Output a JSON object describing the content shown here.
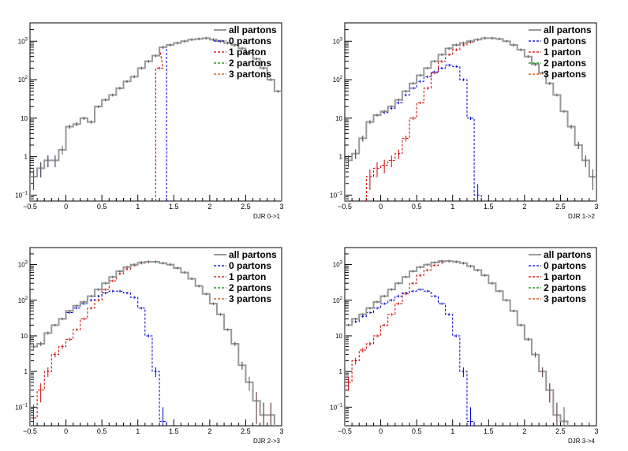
{
  "chart_data": [
    {
      "type": "line",
      "title": "",
      "xlabel": "DJR 0->1",
      "ylabel": "",
      "xlim": [
        -0.5,
        3
      ],
      "ylim": [
        0.07,
        3000
      ],
      "y_scale": "log",
      "x_ticks": [
        "−0.5",
        "0",
        "0.5",
        "1",
        "1.5",
        "2",
        "2.5",
        "3"
      ],
      "y_ticks": [
        {
          "v": 0.1,
          "base": "10",
          "exp": "−1"
        },
        {
          "v": 1,
          "label": "1"
        },
        {
          "v": 10,
          "label": "10"
        },
        {
          "v": 100,
          "base": "10",
          "exp": "2"
        },
        {
          "v": 1000,
          "base": "10",
          "exp": "3"
        }
      ],
      "legend_position": "top-right",
      "legend": [
        "all partons",
        "0 partons",
        "1 parton",
        "2 partons",
        "3 partons"
      ],
      "series": [
        {
          "name": "all partons",
          "color": "#999999",
          "style": "solid",
          "x": [
            -0.5,
            -0.4,
            -0.3,
            -0.2,
            -0.1,
            0.0,
            0.1,
            0.2,
            0.3,
            0.4,
            0.5,
            0.6,
            0.7,
            0.8,
            0.9,
            1.0,
            1.1,
            1.2,
            1.3,
            1.4,
            1.5,
            1.6,
            1.7,
            1.8,
            1.9,
            2.0,
            2.1,
            2.2,
            2.3,
            2.4,
            2.5,
            2.6,
            2.7,
            2.8,
            2.9
          ],
          "y": [
            0.3,
            0.5,
            0.8,
            0.8,
            1.5,
            6,
            7,
            10,
            8,
            20,
            30,
            40,
            60,
            90,
            120,
            200,
            300,
            420,
            700,
            800,
            900,
            1000,
            1100,
            1150,
            1200,
            1100,
            1000,
            900,
            800,
            650,
            500,
            350,
            200,
            100,
            50
          ]
        },
        {
          "name": "0 partons",
          "color": "#0000cc",
          "style": "dashed",
          "x": [
            -0.5,
            -0.4,
            -0.3,
            -0.2,
            -0.1,
            0.0,
            0.1,
            0.2,
            0.3,
            0.4,
            0.5,
            0.6,
            0.7,
            0.8,
            0.9,
            1.0,
            1.1,
            1.2,
            1.3
          ],
          "y": [
            0.3,
            0.5,
            0.8,
            0.8,
            1.5,
            6,
            7,
            10,
            8,
            20,
            30,
            40,
            60,
            90,
            120,
            200,
            300,
            420,
            700
          ]
        },
        {
          "name": "1 parton",
          "color": "#cc0000",
          "style": "dashed",
          "x": [
            1.25,
            1.3,
            1.4,
            1.5,
            1.6,
            1.7,
            1.8,
            1.9,
            2.0,
            2.1,
            2.2,
            2.3,
            2.4,
            2.5,
            2.6,
            2.7,
            2.8,
            2.9
          ],
          "y": [
            200,
            700,
            800,
            900,
            1000,
            1100,
            1150,
            1200,
            1100,
            1000,
            900,
            800,
            650,
            500,
            350,
            200,
            100,
            50
          ]
        },
        {
          "name": "2 partons",
          "color": "#008800",
          "style": "dashed",
          "x": [],
          "y": []
        },
        {
          "name": "3 partons",
          "color": "#cc4400",
          "style": "dashed",
          "x": [],
          "y": []
        }
      ]
    },
    {
      "type": "line",
      "title": "",
      "xlabel": "DJR 1->2",
      "ylabel": "",
      "xlim": [
        -0.5,
        3
      ],
      "ylim": [
        0.07,
        3000
      ],
      "y_scale": "log",
      "x_ticks": [
        "−0.5",
        "0",
        "0.5",
        "1",
        "1.5",
        "2",
        "2.5",
        "3"
      ],
      "y_ticks": [
        {
          "v": 0.1,
          "base": "10",
          "exp": "−1"
        },
        {
          "v": 1,
          "label": "1"
        },
        {
          "v": 10,
          "label": "10"
        },
        {
          "v": 100,
          "base": "10",
          "exp": "2"
        },
        {
          "v": 1000,
          "base": "10",
          "exp": "3"
        }
      ],
      "legend_position": "top-right",
      "legend": [
        "all partons",
        "0 partons",
        "1 parton",
        "2 partons",
        "3 partons"
      ],
      "series": [
        {
          "name": "all partons",
          "color": "#999999",
          "style": "solid",
          "x": [
            -0.5,
            -0.4,
            -0.3,
            -0.2,
            -0.1,
            0.0,
            0.1,
            0.2,
            0.3,
            0.4,
            0.5,
            0.6,
            0.7,
            0.8,
            0.9,
            1.0,
            1.1,
            1.2,
            1.3,
            1.4,
            1.5,
            1.6,
            1.7,
            1.8,
            1.9,
            2.0,
            2.1,
            2.2,
            2.3,
            2.4,
            2.5,
            2.6,
            2.7,
            2.8,
            2.9
          ],
          "y": [
            0.8,
            1.2,
            3,
            8,
            12,
            15,
            20,
            30,
            50,
            80,
            130,
            200,
            300,
            450,
            650,
            800,
            900,
            1000,
            1100,
            1200,
            1200,
            1150,
            1000,
            800,
            600,
            400,
            250,
            150,
            80,
            40,
            15,
            6,
            2,
            0.8,
            0.3
          ]
        },
        {
          "name": "0 partons",
          "color": "#0000cc",
          "style": "dashed",
          "x": [
            -0.5,
            -0.4,
            -0.3,
            -0.2,
            -0.1,
            0.0,
            0.1,
            0.2,
            0.3,
            0.4,
            0.5,
            0.6,
            0.7,
            0.8,
            0.9,
            1.0,
            1.1,
            1.2,
            1.3
          ],
          "y": [
            0.8,
            1.2,
            3,
            8,
            12,
            14,
            18,
            25,
            40,
            60,
            90,
            120,
            160,
            200,
            240,
            220,
            100,
            10,
            0.1
          ]
        },
        {
          "name": "1 parton",
          "color": "#cc0000",
          "style": "dashed",
          "x": [
            -0.2,
            -0.1,
            0.0,
            0.1,
            0.2,
            0.3,
            0.4,
            0.5,
            0.6,
            0.7,
            0.8,
            0.9,
            1.0,
            1.1,
            1.2,
            1.3,
            1.4,
            1.5,
            1.6,
            1.7,
            1.8,
            1.9,
            2.0,
            2.1,
            2.2,
            2.3,
            2.4,
            2.5,
            2.6,
            2.7,
            2.8,
            2.9
          ],
          "y": [
            0.3,
            0.5,
            0.6,
            0.8,
            1.2,
            3,
            10,
            25,
            60,
            150,
            300,
            450,
            600,
            800,
            950,
            1100,
            1200,
            1200,
            1150,
            1000,
            800,
            600,
            400,
            250,
            150,
            80,
            40,
            15,
            6,
            2,
            0.8,
            0.3
          ]
        },
        {
          "name": "2 partons",
          "color": "#008800",
          "style": "dashed",
          "x": [],
          "y": []
        },
        {
          "name": "3 partons",
          "color": "#cc4400",
          "style": "dashed",
          "x": [],
          "y": []
        }
      ]
    },
    {
      "type": "line",
      "title": "",
      "xlabel": "DJR 2->3",
      "ylabel": "",
      "xlim": [
        -0.5,
        3
      ],
      "ylim": [
        0.03,
        3000
      ],
      "y_scale": "log",
      "x_ticks": [
        "−0.5",
        "0",
        "0.5",
        "1",
        "1.5",
        "2",
        "2.5",
        "3"
      ],
      "y_ticks": [
        {
          "v": 0.1,
          "base": "10",
          "exp": "−1"
        },
        {
          "v": 1,
          "label": "1"
        },
        {
          "v": 10,
          "label": "10"
        },
        {
          "v": 100,
          "base": "10",
          "exp": "2"
        },
        {
          "v": 1000,
          "base": "10",
          "exp": "3"
        }
      ],
      "legend_position": "top-right",
      "legend": [
        "all partons",
        "0 partons",
        "1 parton",
        "2 partons",
        "3 partons"
      ],
      "series": [
        {
          "name": "all partons",
          "color": "#999999",
          "style": "solid",
          "x": [
            -0.5,
            -0.4,
            -0.3,
            -0.2,
            -0.1,
            0.0,
            0.1,
            0.2,
            0.3,
            0.4,
            0.5,
            0.6,
            0.7,
            0.8,
            0.9,
            1.0,
            1.1,
            1.2,
            1.3,
            1.4,
            1.5,
            1.6,
            1.7,
            1.8,
            1.9,
            2.0,
            2.1,
            2.2,
            2.3,
            2.4,
            2.5,
            2.6,
            2.7,
            2.8
          ],
          "y": [
            5,
            6,
            12,
            20,
            30,
            50,
            70,
            90,
            130,
            200,
            300,
            450,
            650,
            850,
            1000,
            1150,
            1200,
            1200,
            1100,
            1000,
            800,
            600,
            400,
            250,
            150,
            80,
            40,
            15,
            6,
            1.5,
            0.5,
            0.15,
            0.06,
            0.06
          ]
        },
        {
          "name": "0 partons",
          "color": "#0000cc",
          "style": "dashed",
          "x": [
            -0.5,
            -0.4,
            -0.3,
            -0.2,
            -0.1,
            0.0,
            0.1,
            0.2,
            0.3,
            0.4,
            0.5,
            0.6,
            0.7,
            0.8,
            0.9,
            1.0,
            1.1,
            1.2,
            1.3
          ],
          "y": [
            5,
            6,
            12,
            20,
            30,
            45,
            60,
            80,
            100,
            130,
            160,
            180,
            180,
            160,
            120,
            60,
            10,
            1,
            0.04
          ]
        },
        {
          "name": "1 parton",
          "color": "#cc0000",
          "style": "dashed",
          "x": [
            -0.5,
            -0.4,
            -0.3,
            -0.2,
            -0.1,
            0.0,
            0.1,
            0.2,
            0.3,
            0.4,
            0.5,
            0.6,
            0.7,
            0.8,
            0.9,
            1.0,
            1.1,
            1.2,
            1.3,
            1.4,
            1.5,
            1.6,
            1.7,
            1.8,
            1.9,
            2.0,
            2.1,
            2.2,
            2.3,
            2.4,
            2.5,
            2.6,
            2.7,
            2.8
          ],
          "y": [
            0.05,
            0.3,
            1,
            3,
            5,
            8,
            15,
            30,
            60,
            100,
            200,
            350,
            550,
            750,
            950,
            1100,
            1200,
            1200,
            1100,
            1000,
            800,
            600,
            400,
            250,
            150,
            80,
            40,
            15,
            6,
            1.5,
            0.5,
            0.15,
            0.06,
            0.06
          ]
        },
        {
          "name": "2 partons",
          "color": "#008800",
          "style": "dashed",
          "x": [],
          "y": []
        },
        {
          "name": "3 partons",
          "color": "#cc4400",
          "style": "dashed",
          "x": [],
          "y": []
        }
      ]
    },
    {
      "type": "line",
      "title": "",
      "xlabel": "DJR 3->4",
      "ylabel": "",
      "xlim": [
        -0.5,
        3
      ],
      "ylim": [
        0.03,
        3000
      ],
      "y_scale": "log",
      "x_ticks": [
        "−0.5",
        "0",
        "0.5",
        "1",
        "1.5",
        "2",
        "2.5",
        "3"
      ],
      "y_ticks": [
        {
          "v": 0.1,
          "base": "10",
          "exp": "−1"
        },
        {
          "v": 1,
          "label": "1"
        },
        {
          "v": 10,
          "label": "10"
        },
        {
          "v": 100,
          "base": "10",
          "exp": "2"
        },
        {
          "v": 1000,
          "base": "10",
          "exp": "3"
        }
      ],
      "legend_position": "top-right",
      "legend": [
        "all partons",
        "0 partons",
        "1 parton",
        "2 partons",
        "3 partons"
      ],
      "series": [
        {
          "name": "all partons",
          "color": "#999999",
          "style": "solid",
          "x": [
            -0.5,
            -0.4,
            -0.3,
            -0.2,
            -0.1,
            0.0,
            0.1,
            0.2,
            0.3,
            0.4,
            0.5,
            0.6,
            0.7,
            0.8,
            0.9,
            1.0,
            1.1,
            1.2,
            1.3,
            1.4,
            1.5,
            1.6,
            1.7,
            1.8,
            1.9,
            2.0,
            2.1,
            2.2,
            2.3,
            2.4,
            2.5
          ],
          "y": [
            20,
            30,
            40,
            60,
            90,
            130,
            200,
            300,
            450,
            650,
            850,
            1000,
            1150,
            1250,
            1250,
            1200,
            1100,
            900,
            700,
            500,
            300,
            180,
            100,
            50,
            20,
            8,
            3,
            1,
            0.3,
            0.06,
            0.04
          ]
        },
        {
          "name": "0 partons",
          "color": "#0000cc",
          "style": "dashed",
          "x": [
            -0.5,
            -0.4,
            -0.3,
            -0.2,
            -0.1,
            0.0,
            0.1,
            0.2,
            0.3,
            0.4,
            0.5,
            0.6,
            0.7,
            0.8,
            0.9,
            1.0,
            1.1,
            1.2
          ],
          "y": [
            20,
            25,
            35,
            45,
            60,
            80,
            100,
            130,
            160,
            180,
            200,
            180,
            130,
            80,
            40,
            10,
            1,
            0.04
          ]
        },
        {
          "name": "1 parton",
          "color": "#cc0000",
          "style": "dashed",
          "x": [
            -0.5,
            -0.4,
            -0.3,
            -0.2,
            -0.1,
            0.0,
            0.1,
            0.2,
            0.3,
            0.4,
            0.5,
            0.6,
            0.7,
            0.8,
            0.9,
            1.0,
            1.1,
            1.2,
            1.3,
            1.4,
            1.5,
            1.6,
            1.7,
            1.8,
            1.9,
            2.0,
            2.1,
            2.2,
            2.3,
            2.4,
            2.5
          ],
          "y": [
            0.5,
            2,
            4,
            6,
            10,
            20,
            40,
            80,
            150,
            300,
            500,
            700,
            950,
            1150,
            1250,
            1200,
            1100,
            900,
            700,
            500,
            300,
            180,
            100,
            50,
            20,
            8,
            3,
            1,
            0.3,
            0.06,
            0.04
          ]
        },
        {
          "name": "2 partons",
          "color": "#008800",
          "style": "dashed",
          "x": [],
          "y": []
        },
        {
          "name": "3 partons",
          "color": "#cc4400",
          "style": "dashed",
          "x": [],
          "y": []
        }
      ]
    }
  ]
}
